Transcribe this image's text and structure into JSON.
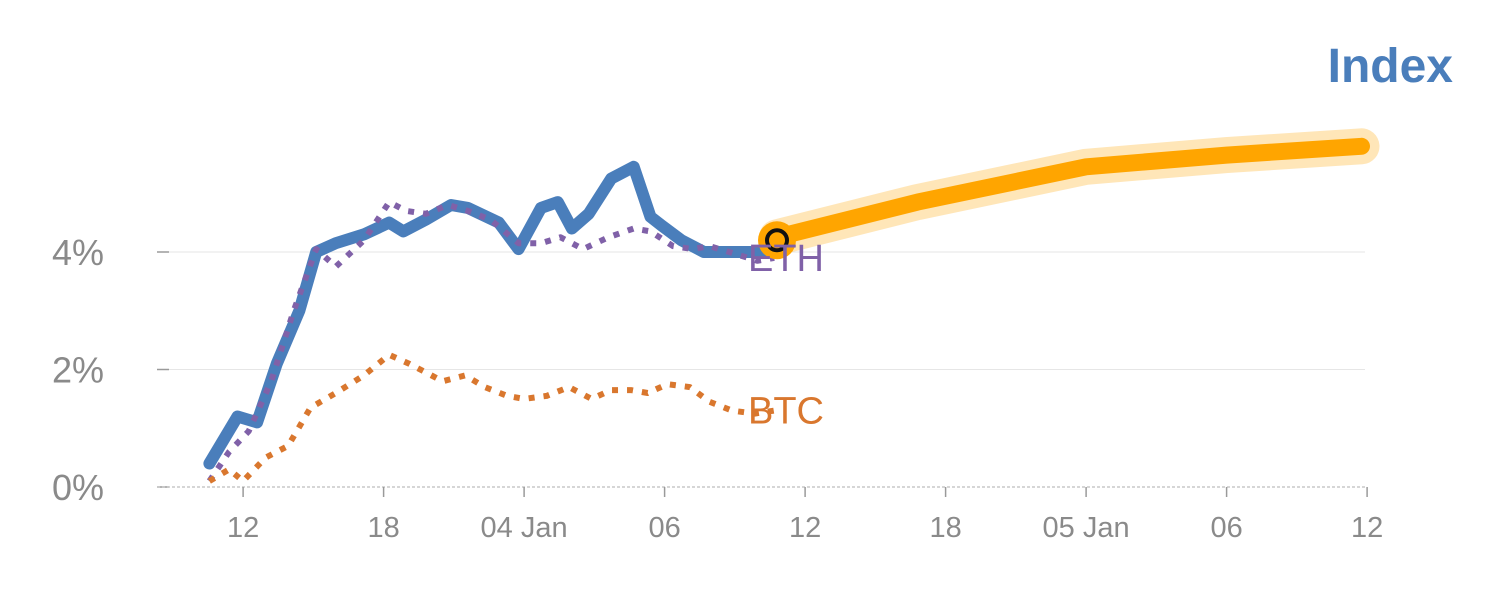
{
  "chart_data": {
    "type": "line",
    "title": "Index",
    "y_unit": "%",
    "ylim": [
      0,
      6.2
    ],
    "y_ticks": [
      {
        "value": 0,
        "label": "0%"
      },
      {
        "value": 2,
        "label": "2%"
      },
      {
        "value": 4,
        "label": "4%"
      }
    ],
    "x_ticks": [
      {
        "x": 1,
        "label": "12"
      },
      {
        "x": 6,
        "label": "18"
      },
      {
        "x": 11,
        "label": "04 Jan"
      },
      {
        "x": 16,
        "label": "06"
      },
      {
        "x": 21,
        "label": "12"
      },
      {
        "x": 26,
        "label": "18"
      },
      {
        "x": 31,
        "label": "05 Jan"
      },
      {
        "x": 36,
        "label": "06"
      },
      {
        "x": 41,
        "label": "12"
      }
    ],
    "grid": "horizontal",
    "series": [
      {
        "name": "",
        "style": "solid",
        "color": "#4a7ebb",
        "x": [
          -0.2,
          0.8,
          1.5,
          2.2,
          3.0,
          3.6,
          4.3,
          5.3,
          6.2,
          6.7,
          7.5,
          8.4,
          9.0,
          10.1,
          10.8,
          11.6,
          12.2,
          12.7,
          13.3,
          14.1,
          14.9,
          15.5,
          15.9,
          16.6,
          17.4,
          18.0,
          18.6,
          19.2,
          19.9
        ],
        "y": [
          0.4,
          1.2,
          1.1,
          2.1,
          3.0,
          4.0,
          4.15,
          4.3,
          4.5,
          4.35,
          4.55,
          4.8,
          4.75,
          4.5,
          4.05,
          4.75,
          4.85,
          4.4,
          4.65,
          5.25,
          5.45,
          4.6,
          4.45,
          4.2,
          4.0,
          4.0,
          4.0,
          4.0,
          4.0
        ]
      },
      {
        "name": "ETH",
        "style": "dotted",
        "color": "#8061a8",
        "x": [
          -0.2,
          0.5,
          1.2,
          2.0,
          2.8,
          3.6,
          4.3,
          5.3,
          6.2,
          6.8,
          7.5,
          8.3,
          9.0,
          9.8,
          10.8,
          11.6,
          12.3,
          13.1,
          14.0,
          14.9,
          15.5,
          16.3,
          17.0,
          17.6,
          18.3,
          19.3,
          19.9
        ],
        "y": [
          0.1,
          0.6,
          0.95,
          1.8,
          3.0,
          4.05,
          3.75,
          4.2,
          4.85,
          4.7,
          4.65,
          4.8,
          4.7,
          4.55,
          4.15,
          4.15,
          4.25,
          4.05,
          4.25,
          4.4,
          4.35,
          4.1,
          4.05,
          4.1,
          4.0,
          3.85,
          3.9
        ],
        "label": "ETH"
      },
      {
        "name": "BTC",
        "style": "dotted",
        "color": "#d9772e",
        "x": [
          -0.2,
          0.5,
          1.0,
          1.8,
          2.6,
          3.4,
          4.3,
          5.3,
          6.2,
          6.9,
          7.5,
          8.1,
          8.9,
          9.6,
          10.4,
          11.0,
          11.8,
          12.6,
          13.4,
          14.1,
          14.8,
          15.4,
          16.1,
          16.9,
          17.6,
          18.4,
          19.2,
          19.9
        ],
        "y": [
          0.1,
          0.3,
          0.1,
          0.5,
          0.7,
          1.35,
          1.6,
          1.9,
          2.25,
          2.1,
          1.95,
          1.8,
          1.9,
          1.7,
          1.55,
          1.5,
          1.55,
          1.7,
          1.5,
          1.65,
          1.65,
          1.6,
          1.75,
          1.7,
          1.45,
          1.3,
          1.25,
          1.3
        ],
        "label": "BTC"
      },
      {
        "name": "",
        "style": "highlight",
        "color": "#ffa500",
        "x": [
          20,
          25,
          31,
          36,
          40.8
        ],
        "y": [
          4.25,
          4.85,
          5.45,
          5.65,
          5.8
        ]
      }
    ],
    "marker": {
      "x": 20,
      "y": 4.2,
      "color": "#ffa500"
    }
  }
}
